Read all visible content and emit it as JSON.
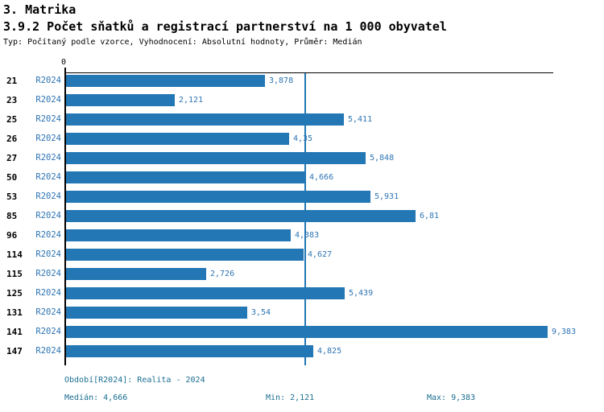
{
  "header": {
    "section": "3. Matrika",
    "title": "3.9.2 Počet sňatků a registrací partnerství na 1 000 obyvatel",
    "meta": "Typ: Počítaný podle vzorce, Vyhodnocení: Absolutní hodnoty, Průměr: Medián"
  },
  "chart_data": {
    "type": "bar",
    "orientation": "horizontal",
    "title": "3.9.2 Počet sňatků a registrací partnerství na 1 000 obyvatel",
    "axis_zero_label": "0",
    "xlim": [
      0,
      9.5
    ],
    "grid": false,
    "median_line_value": 4.666,
    "period_label": "R2024",
    "categories": [
      "21",
      "23",
      "25",
      "26",
      "27",
      "50",
      "53",
      "85",
      "96",
      "114",
      "115",
      "125",
      "131",
      "141",
      "147"
    ],
    "values": [
      3.878,
      2.121,
      5.411,
      4.35,
      5.848,
      4.666,
      5.931,
      6.81,
      4.383,
      4.627,
      2.726,
      5.439,
      3.54,
      9.383,
      4.825
    ],
    "value_labels": [
      "3,878",
      "2,121",
      "5,411",
      "4,35",
      "5,848",
      "4,666",
      "5,931",
      "6,81",
      "4,383",
      "4,627",
      "2,726",
      "5,439",
      "3,54",
      "9,383",
      "4,825"
    ]
  },
  "footer": {
    "period": "Období[R2024]: Realita - 2024",
    "median": "Medián: 4,666",
    "min": "Min: 2,121",
    "max": "Max: 9,383"
  },
  "colors": {
    "bar": "#2277b4",
    "value_label": "#2d74b4",
    "footer_text": "#1a6e91",
    "axis": "#000000"
  }
}
